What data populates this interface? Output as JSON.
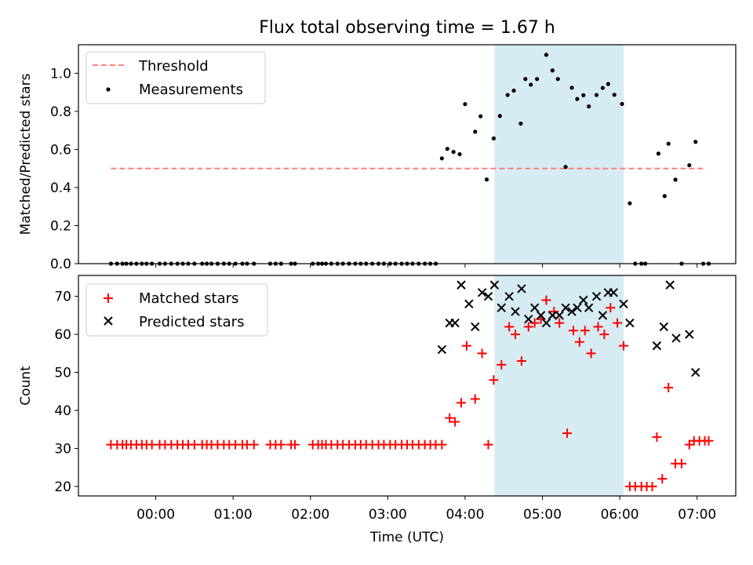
{
  "chart_data": [
    {
      "type": "scatter",
      "title": "Flux total observing time = 1.67 h",
      "xlabel": "",
      "ylabel": "Matched/Predicted stars",
      "xlim": [
        -1.0,
        7.5
      ],
      "ylim": [
        0,
        1.15
      ],
      "yticks": [
        0.0,
        0.2,
        0.4,
        0.6,
        0.8,
        1.0
      ],
      "ytick_labels": [
        "0.0",
        "0.2",
        "0.4",
        "0.6",
        "0.8",
        "1.0"
      ],
      "shaded_interval": [
        4.38,
        6.05
      ],
      "threshold": {
        "value": 0.5,
        "x_range": [
          -0.58,
          7.1
        ]
      },
      "legend": {
        "position": "upper-left",
        "entries": [
          "Threshold",
          "Measurements"
        ]
      },
      "series": [
        {
          "name": "Measurements",
          "points": [
            [
              -0.58,
              0
            ],
            [
              -0.5,
              0
            ],
            [
              -0.43,
              0
            ],
            [
              -0.38,
              0
            ],
            [
              -0.32,
              0
            ],
            [
              -0.25,
              0
            ],
            [
              -0.18,
              0
            ],
            [
              -0.12,
              0
            ],
            [
              -0.05,
              0
            ],
            [
              0.05,
              0
            ],
            [
              0.12,
              0
            ],
            [
              0.2,
              0
            ],
            [
              0.28,
              0
            ],
            [
              0.35,
              0
            ],
            [
              0.42,
              0
            ],
            [
              0.5,
              0
            ],
            [
              0.6,
              0
            ],
            [
              0.66,
              0
            ],
            [
              0.72,
              0
            ],
            [
              0.8,
              0
            ],
            [
              0.88,
              0
            ],
            [
              0.95,
              0
            ],
            [
              1.03,
              0
            ],
            [
              1.12,
              0
            ],
            [
              1.18,
              0
            ],
            [
              1.27,
              0
            ],
            [
              1.48,
              0
            ],
            [
              1.55,
              0
            ],
            [
              1.62,
              0
            ],
            [
              1.75,
              0
            ],
            [
              1.8,
              0
            ],
            [
              2.03,
              0
            ],
            [
              2.1,
              0
            ],
            [
              2.15,
              0
            ],
            [
              2.2,
              0
            ],
            [
              2.27,
              0
            ],
            [
              2.35,
              0
            ],
            [
              2.42,
              0
            ],
            [
              2.5,
              0
            ],
            [
              2.58,
              0
            ],
            [
              2.65,
              0
            ],
            [
              2.72,
              0
            ],
            [
              2.8,
              0
            ],
            [
              2.88,
              0
            ],
            [
              2.95,
              0
            ],
            [
              3.03,
              0
            ],
            [
              3.1,
              0
            ],
            [
              3.18,
              0
            ],
            [
              3.25,
              0
            ],
            [
              3.32,
              0
            ],
            [
              3.4,
              0
            ],
            [
              3.48,
              0
            ],
            [
              3.55,
              0
            ],
            [
              3.62,
              0
            ],
            [
              3.7,
              0.553
            ],
            [
              3.77,
              0.603
            ],
            [
              3.85,
              0.587
            ],
            [
              3.93,
              0.575
            ],
            [
              4.0,
              0.838
            ],
            [
              4.13,
              0.693
            ],
            [
              4.2,
              0.774
            ],
            [
              4.28,
              0.442
            ],
            [
              4.37,
              0.658
            ],
            [
              4.45,
              0.776
            ],
            [
              4.55,
              0.886
            ],
            [
              4.63,
              0.909
            ],
            [
              4.72,
              0.736
            ],
            [
              4.78,
              0.97
            ],
            [
              4.85,
              0.94
            ],
            [
              4.93,
              0.97
            ],
            [
              5.05,
              1.097
            ],
            [
              5.13,
              1.015
            ],
            [
              5.2,
              0.97
            ],
            [
              5.3,
              0.508
            ],
            [
              5.38,
              0.924
            ],
            [
              5.45,
              0.865
            ],
            [
              5.53,
              0.885
            ],
            [
              5.6,
              0.826
            ],
            [
              5.7,
              0.886
            ],
            [
              5.78,
              0.923
            ],
            [
              5.85,
              0.944
            ],
            [
              5.93,
              0.887
            ],
            [
              6.03,
              0.839
            ],
            [
              6.13,
              0.317
            ],
            [
              6.2,
              0
            ],
            [
              6.28,
              0
            ],
            [
              6.33,
              0
            ],
            [
              6.5,
              0.578
            ],
            [
              6.58,
              0.355
            ],
            [
              6.63,
              0.63
            ],
            [
              6.72,
              0.441
            ],
            [
              6.8,
              0
            ],
            [
              6.9,
              0.517
            ],
            [
              6.98,
              0.64
            ],
            [
              7.08,
              0
            ],
            [
              7.15,
              0
            ]
          ]
        }
      ]
    },
    {
      "type": "scatter",
      "title": "",
      "xlabel": "Time (UTC)",
      "ylabel": "Count",
      "xlim": [
        -1.0,
        7.5
      ],
      "ylim": [
        17.5,
        75.5
      ],
      "yticks": [
        20,
        30,
        40,
        50,
        60,
        70
      ],
      "ytick_labels": [
        "20",
        "30",
        "40",
        "50",
        "60",
        "70"
      ],
      "xticks": [
        0,
        1,
        2,
        3,
        4,
        5,
        6,
        7
      ],
      "xtick_labels": [
        "00:00",
        "01:00",
        "02:00",
        "03:00",
        "04:00",
        "05:00",
        "06:00",
        "07:00"
      ],
      "shaded_interval": [
        4.38,
        6.05
      ],
      "legend": {
        "position": "upper-left",
        "entries": [
          "Matched stars",
          "Predicted stars"
        ]
      },
      "series": [
        {
          "name": "Matched stars",
          "color": "#ff0000",
          "marker": "plus",
          "points": [
            [
              -0.58,
              31
            ],
            [
              -0.5,
              31
            ],
            [
              -0.43,
              31
            ],
            [
              -0.38,
              31
            ],
            [
              -0.32,
              31
            ],
            [
              -0.25,
              31
            ],
            [
              -0.18,
              31
            ],
            [
              -0.12,
              31
            ],
            [
              -0.05,
              31
            ],
            [
              0.05,
              31
            ],
            [
              0.12,
              31
            ],
            [
              0.2,
              31
            ],
            [
              0.28,
              31
            ],
            [
              0.35,
              31
            ],
            [
              0.42,
              31
            ],
            [
              0.5,
              31
            ],
            [
              0.6,
              31
            ],
            [
              0.66,
              31
            ],
            [
              0.72,
              31
            ],
            [
              0.8,
              31
            ],
            [
              0.88,
              31
            ],
            [
              0.95,
              31
            ],
            [
              1.03,
              31
            ],
            [
              1.12,
              31
            ],
            [
              1.18,
              31
            ],
            [
              1.27,
              31
            ],
            [
              1.48,
              31
            ],
            [
              1.55,
              31
            ],
            [
              1.62,
              31
            ],
            [
              1.75,
              31
            ],
            [
              1.8,
              31
            ],
            [
              2.03,
              31
            ],
            [
              2.1,
              31
            ],
            [
              2.15,
              31
            ],
            [
              2.2,
              31
            ],
            [
              2.27,
              31
            ],
            [
              2.35,
              31
            ],
            [
              2.42,
              31
            ],
            [
              2.5,
              31
            ],
            [
              2.58,
              31
            ],
            [
              2.65,
              31
            ],
            [
              2.72,
              31
            ],
            [
              2.8,
              31
            ],
            [
              2.88,
              31
            ],
            [
              2.95,
              31
            ],
            [
              3.03,
              31
            ],
            [
              3.1,
              31
            ],
            [
              3.18,
              31
            ],
            [
              3.25,
              31
            ],
            [
              3.32,
              31
            ],
            [
              3.4,
              31
            ],
            [
              3.48,
              31
            ],
            [
              3.55,
              31
            ],
            [
              3.62,
              31
            ],
            [
              3.7,
              31
            ],
            [
              3.8,
              38
            ],
            [
              3.87,
              37
            ],
            [
              3.95,
              42
            ],
            [
              4.02,
              57
            ],
            [
              4.13,
              43
            ],
            [
              4.22,
              55
            ],
            [
              4.3,
              31
            ],
            [
              4.37,
              48
            ],
            [
              4.47,
              52
            ],
            [
              4.57,
              62
            ],
            [
              4.65,
              60
            ],
            [
              4.73,
              53
            ],
            [
              4.82,
              62
            ],
            [
              4.9,
              63
            ],
            [
              4.98,
              64
            ],
            [
              5.05,
              69
            ],
            [
              5.15,
              66
            ],
            [
              5.22,
              63
            ],
            [
              5.32,
              34
            ],
            [
              5.4,
              61
            ],
            [
              5.48,
              58
            ],
            [
              5.55,
              61
            ],
            [
              5.63,
              55
            ],
            [
              5.72,
              62
            ],
            [
              5.8,
              60
            ],
            [
              5.88,
              67
            ],
            [
              5.97,
              63
            ],
            [
              6.05,
              57
            ],
            [
              6.13,
              20
            ],
            [
              6.2,
              20
            ],
            [
              6.28,
              20
            ],
            [
              6.35,
              20
            ],
            [
              6.42,
              20
            ],
            [
              6.48,
              33
            ],
            [
              6.55,
              22
            ],
            [
              6.63,
              46
            ],
            [
              6.72,
              26
            ],
            [
              6.8,
              26
            ],
            [
              6.9,
              31
            ],
            [
              6.96,
              32
            ],
            [
              7.03,
              32
            ],
            [
              7.1,
              32
            ],
            [
              7.15,
              32
            ]
          ]
        },
        {
          "name": "Predicted stars",
          "color": "#000000",
          "marker": "x",
          "points": [
            [
              3.7,
              56
            ],
            [
              3.8,
              63
            ],
            [
              3.87,
              63
            ],
            [
              3.95,
              73
            ],
            [
              4.05,
              68
            ],
            [
              4.13,
              62
            ],
            [
              4.22,
              71
            ],
            [
              4.3,
              70
            ],
            [
              4.38,
              73
            ],
            [
              4.47,
              67
            ],
            [
              4.57,
              70
            ],
            [
              4.65,
              66
            ],
            [
              4.73,
              72
            ],
            [
              4.82,
              64
            ],
            [
              4.9,
              67
            ],
            [
              4.98,
              65
            ],
            [
              5.05,
              63
            ],
            [
              5.13,
              65
            ],
            [
              5.22,
              65
            ],
            [
              5.3,
              67
            ],
            [
              5.38,
              66
            ],
            [
              5.45,
              67
            ],
            [
              5.53,
              69
            ],
            [
              5.6,
              67
            ],
            [
              5.7,
              70
            ],
            [
              5.78,
              65
            ],
            [
              5.85,
              71
            ],
            [
              5.92,
              71
            ],
            [
              6.05,
              68
            ],
            [
              6.13,
              63
            ],
            [
              6.48,
              57
            ],
            [
              6.57,
              62
            ],
            [
              6.65,
              73
            ],
            [
              6.73,
              59
            ],
            [
              6.9,
              60
            ],
            [
              6.98,
              50
            ]
          ]
        }
      ]
    }
  ],
  "colors": {
    "threshold": "#ff7f7f",
    "shaded": "#add8e6",
    "matched": "#ff0000",
    "predicted": "#000000",
    "measurements": "#000000"
  }
}
